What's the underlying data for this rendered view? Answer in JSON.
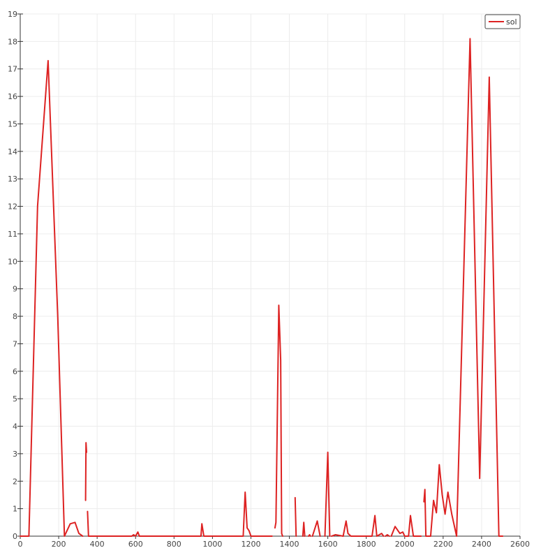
{
  "chart_data": {
    "type": "line",
    "xlim": [
      0,
      2600
    ],
    "ylim": [
      0,
      19
    ],
    "x_ticks": [
      0,
      200,
      400,
      600,
      800,
      1000,
      1200,
      1400,
      1600,
      1800,
      2000,
      2200,
      2400,
      2600
    ],
    "y_ticks": [
      0,
      1,
      2,
      3,
      4,
      5,
      6,
      7,
      8,
      9,
      10,
      11,
      12,
      13,
      14,
      15,
      16,
      17,
      18,
      19
    ],
    "grid": true,
    "legend": {
      "position": "top-right",
      "entries": [
        "sol"
      ]
    },
    "series": [
      {
        "name": "sol",
        "color": "#dd2222",
        "segments": [
          [
            [
              0,
              0
            ],
            [
              45,
              0
            ],
            [
              90,
              12
            ],
            [
              145,
              17.3
            ],
            [
              195,
              8
            ],
            [
              230,
              0
            ],
            [
              260,
              0.45
            ],
            [
              285,
              0.5
            ],
            [
              305,
              0.1
            ],
            [
              325,
              0
            ]
          ],
          [
            [
              340,
              1.3
            ],
            [
              342,
              3.4
            ],
            [
              345,
              3.05
            ]
          ],
          [
            [
              350,
              0.9
            ],
            [
              355,
              0
            ]
          ],
          [
            [
              355,
              0
            ],
            [
              580,
              0
            ],
            [
              590,
              0.05
            ],
            [
              600,
              0
            ],
            [
              612,
              0.15
            ],
            [
              620,
              0
            ],
            [
              940,
              0
            ],
            [
              945,
              0.45
            ],
            [
              955,
              0
            ],
            [
              1160,
              0
            ],
            [
              1170,
              1.6
            ],
            [
              1180,
              0.3
            ],
            [
              1190,
              0.2
            ],
            [
              1200,
              0
            ],
            [
              1310,
              0
            ]
          ],
          [
            [
              1325,
              0.3
            ],
            [
              1330,
              0.5
            ],
            [
              1345,
              8.4
            ],
            [
              1355,
              6.4
            ],
            [
              1360,
              0.1
            ],
            [
              1365,
              0
            ]
          ],
          [
            [
              1430,
              1.4
            ],
            [
              1435,
              0
            ]
          ],
          [
            [
              1470,
              0
            ],
            [
              1475,
              0.5
            ],
            [
              1480,
              0
            ]
          ],
          [
            [
              1500,
              0
            ],
            [
              1505,
              0.05
            ],
            [
              1510,
              0
            ]
          ],
          [
            [
              1520,
              0
            ],
            [
              1545,
              0.55
            ],
            [
              1560,
              0
            ]
          ],
          [
            [
              1585,
              0
            ],
            [
              1600,
              3.05
            ],
            [
              1610,
              0
            ]
          ],
          [
            [
              1620,
              0
            ],
            [
              1640,
              0.05
            ],
            [
              1680,
              0
            ],
            [
              1695,
              0.55
            ],
            [
              1705,
              0.1
            ],
            [
              1720,
              0
            ],
            [
              1830,
              0
            ],
            [
              1845,
              0.75
            ],
            [
              1855,
              0
            ],
            [
              1880,
              0.1
            ],
            [
              1890,
              0
            ]
          ],
          [
            [
              1900,
              0
            ],
            [
              1910,
              0.05
            ],
            [
              1920,
              0
            ]
          ],
          [
            [
              1930,
              0
            ],
            [
              1950,
              0.35
            ],
            [
              1975,
              0.1
            ],
            [
              1990,
              0.15
            ],
            [
              2000,
              0
            ],
            [
              2020,
              0
            ],
            [
              2030,
              0.75
            ],
            [
              2045,
              0
            ],
            [
              2085,
              0
            ]
          ],
          [
            [
              2100,
              1.25
            ],
            [
              2105,
              1.7
            ],
            [
              2110,
              0
            ]
          ],
          [
            [
              2110,
              0
            ],
            [
              2135,
              0
            ],
            [
              2150,
              1.3
            ],
            [
              2165,
              0.85
            ],
            [
              2180,
              2.6
            ],
            [
              2195,
              1.5
            ],
            [
              2210,
              0.8
            ],
            [
              2225,
              1.6
            ],
            [
              2245,
              0.8
            ],
            [
              2270,
              0
            ],
            [
              2340,
              18.1
            ],
            [
              2390,
              2.1
            ],
            [
              2440,
              16.7
            ],
            [
              2490,
              0
            ],
            [
              2510,
              0
            ]
          ]
        ]
      }
    ]
  }
}
